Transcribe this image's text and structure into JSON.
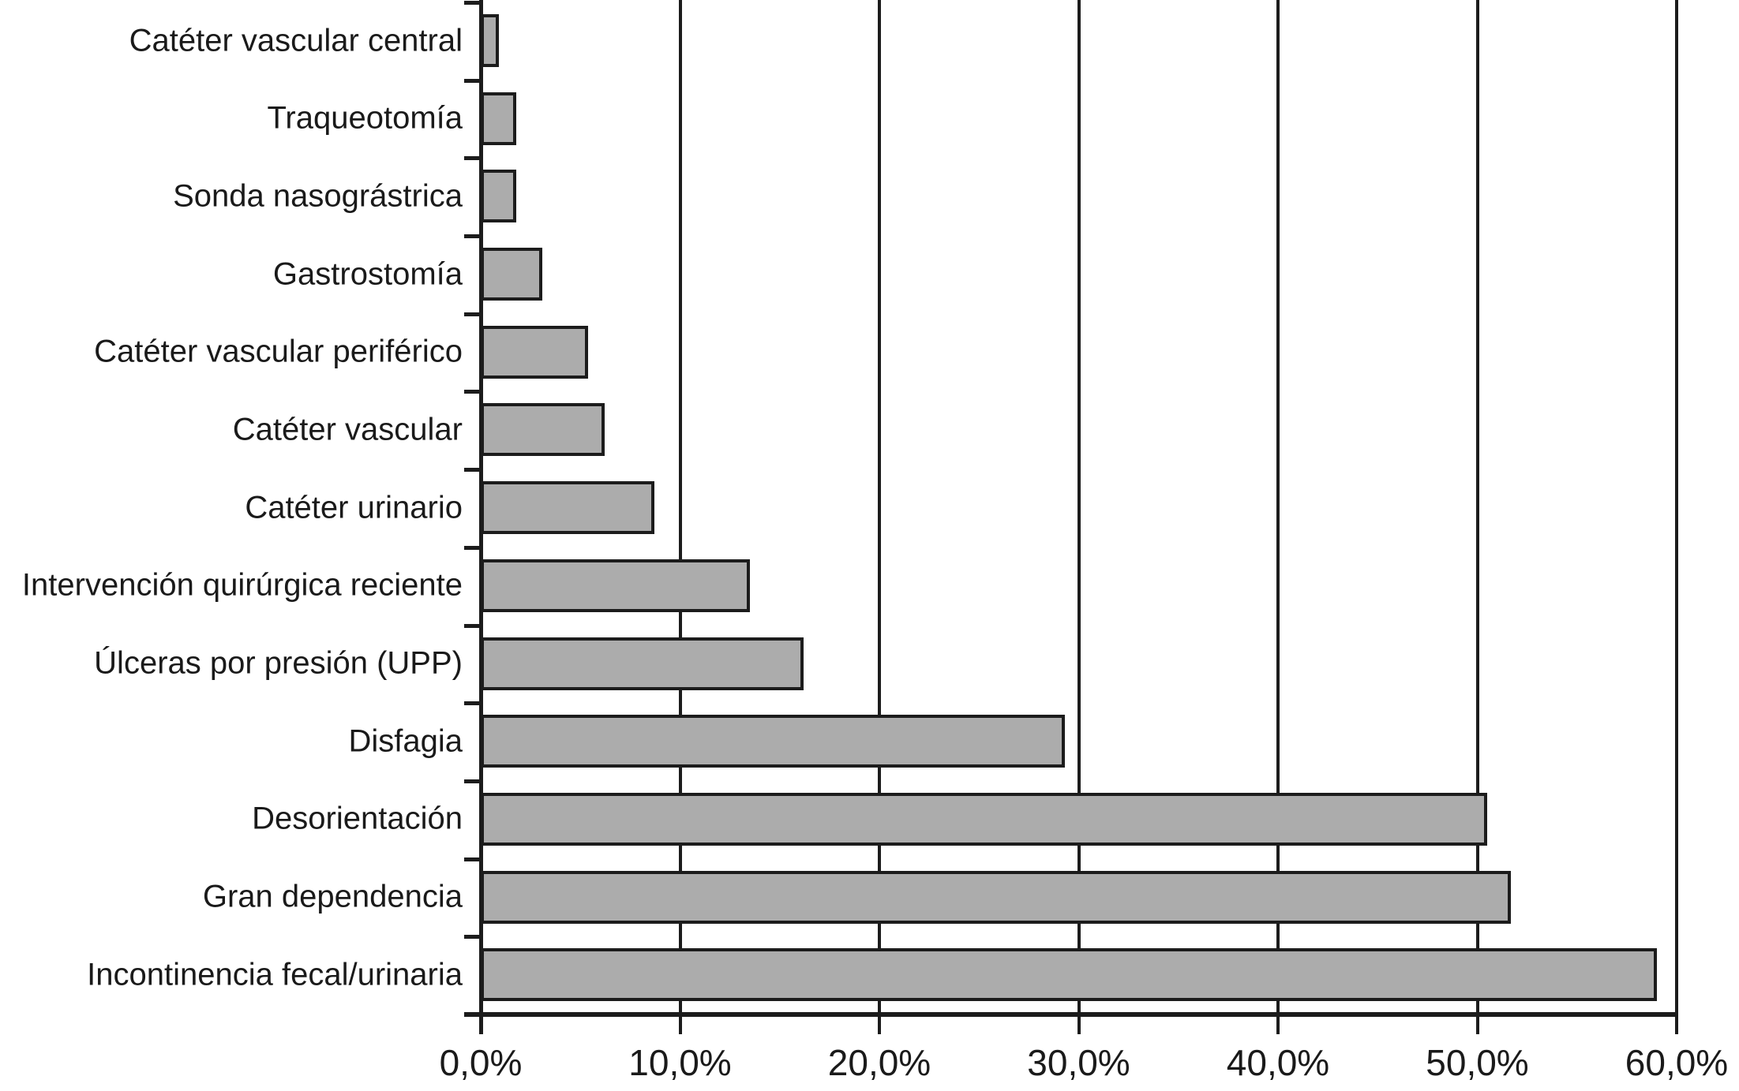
{
  "figure": {
    "background_color": "#ffffff",
    "text_color": "#1a1a1a"
  },
  "chart_data": {
    "type": "bar",
    "orientation": "horizontal",
    "title": "",
    "xlabel": "",
    "ylabel": "",
    "xlim": [
      0,
      60
    ],
    "grid": "vertical gridlines at every 10% tick, drawn behind bars",
    "legend_position": "none",
    "bar_color": "#acacac",
    "bar_border_color": "#1c1c1c",
    "axis_color": "#1c1c1c",
    "x_tick_values": [
      0,
      10,
      20,
      30,
      40,
      50,
      60
    ],
    "x_tick_labels": [
      "0,0%",
      "10,0%",
      "20,0%",
      "30,0%",
      "40,0%",
      "50,0%",
      "60,0%"
    ],
    "categories_top_to_bottom": [
      "Catéter vascular central",
      "Traqueotomía",
      "Sonda nasográstrica",
      "Gastrostomía",
      "Catéter vascular periférico",
      "Catéter vascular",
      "Catéter urinario",
      "Intervención quirúrgica reciente",
      "Úlceras por presión (UPP)",
      "Disfagia",
      "Desorientación",
      "Gran dependencia",
      "Incontinencia fecal/urinaria"
    ],
    "values_percent": [
      0.9,
      1.8,
      1.8,
      3.1,
      5.4,
      6.2,
      8.7,
      13.5,
      16.2,
      29.3,
      50.5,
      51.7,
      59.0
    ]
  }
}
